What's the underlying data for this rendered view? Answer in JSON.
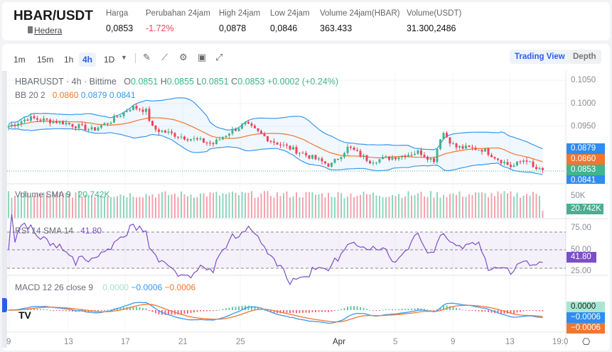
{
  "header": {
    "pair": "HBAR/USDT",
    "coin": "Hedera",
    "coin_icon": "book-icon",
    "stats": [
      {
        "label": "Harga",
        "value": "0,0853"
      },
      {
        "label": "Perubahan 24jam",
        "value": "-1.72%",
        "color": "#f0445a"
      },
      {
        "label": "High 24jam",
        "value": "0,0878"
      },
      {
        "label": "Low 24jam",
        "value": "0,0846"
      },
      {
        "label": "Volume 24jam(HBAR)",
        "value": "363.433"
      },
      {
        "label": "Volume(USDT)",
        "value": "31.300,2486"
      }
    ]
  },
  "toolbar": {
    "timeframes": [
      "1m",
      "15m",
      "1h",
      "4h",
      "1D"
    ],
    "active": "4h",
    "tools": [
      "draw-icon",
      "indicator-icon",
      "gear-icon",
      "save-icon",
      "fullscreen-icon"
    ],
    "views": [
      "Trading View",
      "Depth"
    ],
    "active_view": "Trading View"
  },
  "chart": {
    "title": "HBARUSDT · 4h · Bittime",
    "ohlc": {
      "o_label": "O",
      "o": "0.0851",
      "h_label": "H",
      "h": "0.0855",
      "l_label": "L",
      "l": "0.0851",
      "c_label": "C",
      "c": "0.0853",
      "change": "+0.0002 (+0.24%)"
    },
    "bb": {
      "label": "BB 20 2",
      "mid": "0.0860",
      "upper": "0.0879",
      "lower": "0.0841"
    },
    "volume": {
      "label": "Volume SMA 9",
      "value": "20.742K",
      "axis": [
        "50K"
      ]
    },
    "rsi": {
      "label": "RSI 14 SMA 14",
      "value": "41.80",
      "axis": [
        "75.00",
        "50.00",
        "25.00"
      ]
    },
    "macd": {
      "label": "MACD 12 26 close 9",
      "hist": "0.0000",
      "macd": "−0.0006",
      "signal": "−0.0006"
    },
    "price_axis": [
      "0.1050",
      "0.1000",
      "0.0950"
    ],
    "x_axis": [
      "9",
      "13",
      "17",
      "21",
      "25",
      "Apr",
      "5",
      "9",
      "13",
      "19:0"
    ],
    "colors": {
      "up": "#3fb68b",
      "down": "#f0445a",
      "bb": "#3a97f0",
      "mid": "#f2762e",
      "rsi": "#7b4fc7"
    }
  }
}
